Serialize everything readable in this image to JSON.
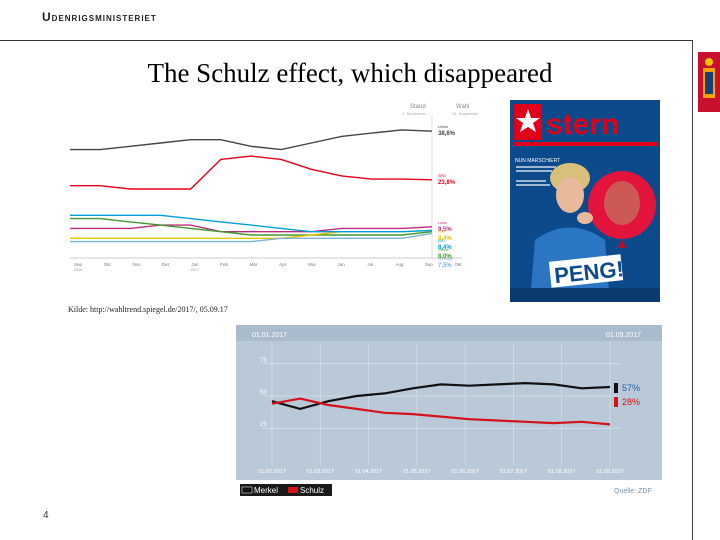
{
  "header": {
    "brand": "Udenrigsministeriet"
  },
  "slide": {
    "title": "The Schulz effect, which disappeared",
    "source": "Kilde: http://wahltrend.spiegel.de/2017/, 05.09.17",
    "page_number": "4"
  },
  "chart_data": [
    {
      "type": "line",
      "header_left": "Stand",
      "header_left_sub": "4. September",
      "header_right": "Wahl",
      "header_right_sub": "24. September",
      "x_ticks": [
        "Sep 2016",
        "Okt",
        "Nov",
        "Dez",
        "Jan 2017",
        "Feb",
        "Mär",
        "Apr",
        "Mai",
        "Jun",
        "Jul",
        "Aug",
        "Sep",
        "Okt"
      ],
      "series": [
        {
          "name": "Union",
          "value_label": "38,6%",
          "color": "#444444",
          "values": [
            33,
            33,
            34,
            35,
            36,
            36,
            34,
            33,
            35,
            37,
            38,
            39,
            38.6
          ]
        },
        {
          "name": "SPD",
          "value_label": "23,8%",
          "color": "#e3001b",
          "values": [
            22,
            22,
            21,
            21,
            21,
            30,
            31,
            30,
            27,
            25,
            24,
            24,
            23.8
          ]
        },
        {
          "name": "Linke",
          "value_label": "9,5%",
          "color": "#bd2c7a",
          "values": [
            9,
            9,
            9,
            10,
            10,
            8,
            8,
            8,
            8,
            9,
            9,
            9,
            9.5
          ]
        },
        {
          "name": "Grüne",
          "value_label": "8,0%",
          "color": "#3f9a2d",
          "values": [
            12,
            12,
            11,
            10,
            9,
            8,
            7,
            7,
            7,
            7,
            7,
            7,
            8.0
          ]
        },
        {
          "name": "FDP",
          "value_label": "8,4%",
          "color": "#e8c300",
          "values": [
            6,
            6,
            6,
            6,
            6,
            6,
            6,
            6,
            7,
            8,
            8,
            8,
            8.4
          ]
        },
        {
          "name": "AfD",
          "value_label": "8,4%",
          "color": "#009ee0",
          "values": [
            13,
            13,
            13,
            13,
            12,
            11,
            10,
            9,
            8,
            8,
            8,
            8,
            8.4
          ]
        },
        {
          "name": "Sonstige",
          "value_label": "7,5%",
          "color": "#7bb3d9",
          "values": [
            5,
            5,
            5,
            5,
            5,
            5,
            5,
            6,
            6,
            6,
            6,
            6,
            7.5
          ]
        }
      ]
    },
    {
      "type": "line",
      "date_left": "01.01.2017",
      "date_right": "01.09.2017",
      "y_ticks": [
        "75",
        "50",
        "25"
      ],
      "x_ticks": [
        "01.02.2017",
        "01.03.2017",
        "01.04.2017",
        "01.05.2017",
        "01.06.2017",
        "01.07.2017",
        "01.08.2017",
        "01.09.2017"
      ],
      "legend_merkel": "Merkel",
      "legend_schulz": "Schulz",
      "source": "Quelle: ZDF",
      "series": [
        {
          "name": "Merkel",
          "value_label": "57%",
          "color": "#111111",
          "values": [
            46,
            40,
            46,
            50,
            52,
            56,
            59,
            58,
            59,
            60,
            59,
            56,
            57
          ]
        },
        {
          "name": "Schulz",
          "value_label": "28%",
          "color": "#d4121b",
          "values": [
            44,
            48,
            43,
            40,
            37,
            36,
            34,
            32,
            31,
            30,
            29,
            30,
            28
          ]
        }
      ]
    }
  ],
  "cover": {
    "logo": "stern",
    "banner": "PENG!",
    "headline": "NUN MARSCHIERT"
  }
}
